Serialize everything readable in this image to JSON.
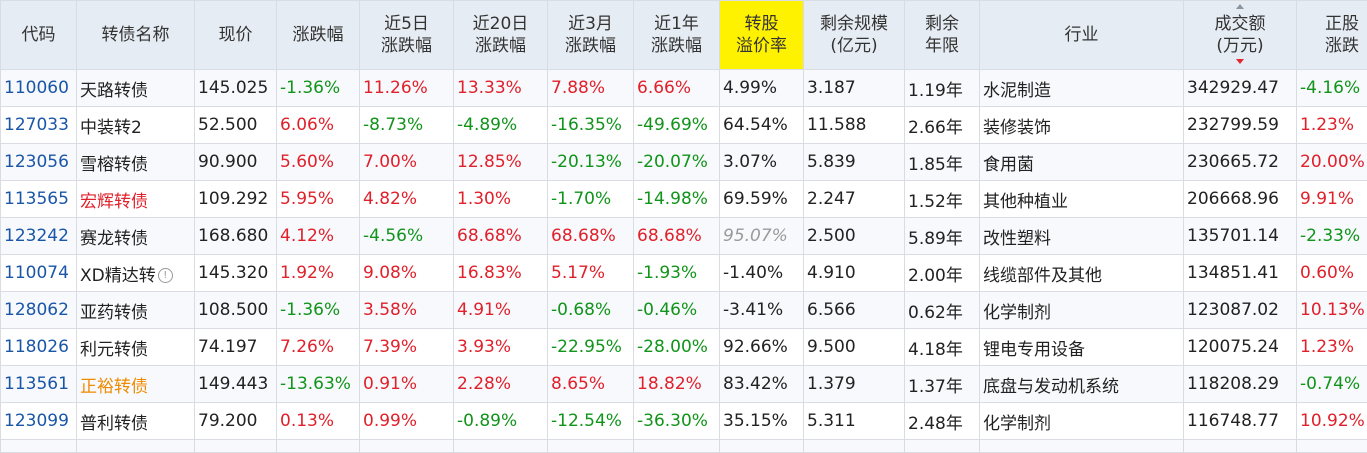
{
  "headers": {
    "code": "代码",
    "name": "转债名称",
    "price": "现价",
    "change": "涨跌幅",
    "d5": [
      "近5日",
      "涨跌幅"
    ],
    "d20": [
      "近20日",
      "涨跌幅"
    ],
    "m3": [
      "近3月",
      "涨跌幅"
    ],
    "y1": [
      "近1年",
      "涨跌幅"
    ],
    "premium": [
      "转股",
      "溢价率"
    ],
    "size": [
      "剩余规模",
      "(亿元)"
    ],
    "term": [
      "剩余",
      "年限"
    ],
    "industry": "行业",
    "volume": [
      "成交额",
      "(万元)"
    ],
    "stock_change": [
      "正股",
      "涨跌"
    ]
  },
  "rows": [
    {
      "code": "110060",
      "name": "天路转债",
      "price": "145.025",
      "change": "-1.36%",
      "d5": "11.26%",
      "d20": "13.33%",
      "m3": "7.88%",
      "y1": "6.66%",
      "premium": "4.99%",
      "size": "3.187",
      "term": "1.19年",
      "industry": "水泥制造",
      "volume": "342929.47",
      "stock_change": "-4.16%"
    },
    {
      "code": "127033",
      "name": "中装转2",
      "price": "52.500",
      "change": "6.06%",
      "d5": "-8.73%",
      "d20": "-4.89%",
      "m3": "-16.35%",
      "y1": "-49.69%",
      "premium": "64.54%",
      "size": "11.588",
      "term": "2.66年",
      "industry": "装修装饰",
      "volume": "232799.59",
      "stock_change": "1.23%"
    },
    {
      "code": "123056",
      "name": "雪榕转债",
      "price": "90.900",
      "change": "5.60%",
      "d5": "7.00%",
      "d20": "12.85%",
      "m3": "-20.13%",
      "y1": "-20.07%",
      "premium": "3.07%",
      "size": "5.839",
      "term": "1.85年",
      "industry": "食用菌",
      "volume": "230665.72",
      "stock_change": "20.00%"
    },
    {
      "code": "113565",
      "name": "宏辉转债",
      "price": "109.292",
      "change": "5.95%",
      "d5": "4.82%",
      "d20": "1.30%",
      "m3": "-1.70%",
      "y1": "-14.98%",
      "premium": "69.59%",
      "size": "2.247",
      "term": "1.52年",
      "industry": "其他种植业",
      "volume": "206668.96",
      "stock_change": "9.91%"
    },
    {
      "code": "123242",
      "name": "赛龙转债",
      "price": "168.680",
      "change": "4.12%",
      "d5": "-4.56%",
      "d20": "68.68%",
      "m3": "68.68%",
      "y1": "68.68%",
      "premium": "95.07%",
      "size": "2.500",
      "term": "5.89年",
      "industry": "改性塑料",
      "volume": "135701.14",
      "stock_change": "-2.33%"
    },
    {
      "code": "110074",
      "name": "XD精达转",
      "name_icon": "!",
      "price": "145.320",
      "change": "1.92%",
      "d5": "9.08%",
      "d20": "16.83%",
      "m3": "5.17%",
      "y1": "-1.93%",
      "premium": "-1.40%",
      "size": "4.910",
      "term": "2.00年",
      "industry": "线缆部件及其他",
      "volume": "134851.41",
      "stock_change": "0.60%"
    },
    {
      "code": "128062",
      "name": "亚药转债",
      "price": "108.500",
      "change": "-1.36%",
      "d5": "3.58%",
      "d20": "4.91%",
      "m3": "-0.68%",
      "y1": "-0.46%",
      "premium": "-3.41%",
      "size": "6.566",
      "term": "0.62年",
      "industry": "化学制剂",
      "volume": "123087.02",
      "stock_change": "10.13%"
    },
    {
      "code": "118026",
      "name": "利元转债",
      "price": "74.197",
      "change": "7.26%",
      "d5": "7.39%",
      "d20": "3.93%",
      "m3": "-22.95%",
      "y1": "-28.00%",
      "premium": "92.66%",
      "size": "9.500",
      "term": "4.18年",
      "industry": "锂电专用设备",
      "volume": "120075.24",
      "stock_change": "1.23%"
    },
    {
      "code": "113561",
      "name": "正裕转债",
      "price": "149.443",
      "change": "-13.63%",
      "d5": "0.91%",
      "d20": "2.28%",
      "m3": "8.65%",
      "y1": "18.82%",
      "premium": "83.42%",
      "size": "1.379",
      "term": "1.37年",
      "industry": "底盘与发动机系统",
      "volume": "118208.29",
      "stock_change": "-0.74%"
    },
    {
      "code": "123099",
      "name": "普利转债",
      "price": "79.200",
      "change": "0.13%",
      "d5": "0.99%",
      "d20": "-0.89%",
      "m3": "-12.54%",
      "y1": "-36.30%",
      "premium": "35.15%",
      "size": "5.311",
      "term": "2.48年",
      "industry": "化学制剂",
      "volume": "116748.77",
      "stock_change": "10.92%"
    }
  ],
  "colors": {
    "up": "#e0202a",
    "down": "#11941a",
    "code": "#1a56a8",
    "highlight_header": "#fff200",
    "name_red": "#e0202a",
    "name_orange": "#f08a00",
    "premium_muted": "#9a9a9a"
  },
  "row_styles": {
    "113565": {
      "name_color": "red"
    },
    "113561": {
      "name_color": "orange"
    },
    "123242": {
      "premium_style": "gray-italic"
    }
  },
  "sort": {
    "column": "volume",
    "direction": "desc",
    "icon": "sort-desc-icon"
  }
}
